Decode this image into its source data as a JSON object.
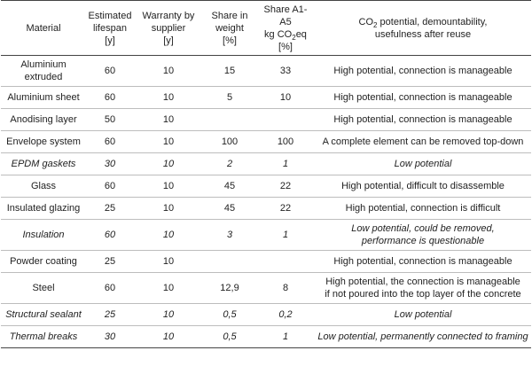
{
  "headers": {
    "material": "Material",
    "lifespan": [
      "Estimated",
      "lifespan",
      "[y]"
    ],
    "warranty": [
      "Warranty by",
      "supplier",
      "[y]"
    ],
    "weight": [
      "Share in",
      "weight",
      "[%]"
    ],
    "share": [
      "Share A1-A5",
      "kg CO",
      "2",
      "eq",
      "[%]"
    ],
    "potential": [
      "CO",
      "2",
      " potential, demountability,",
      "usefulness after reuse"
    ]
  },
  "rows": [
    {
      "material": [
        "Aluminium",
        "extruded"
      ],
      "lifespan": "60",
      "warranty": "10",
      "weight": "15",
      "share": "33",
      "potential": [
        "High potential, connection is manageable"
      ]
    },
    {
      "material": [
        "Aluminium sheet"
      ],
      "lifespan": "60",
      "warranty": "10",
      "weight": "5",
      "share": "10",
      "potential": [
        "High potential, connection is manageable"
      ]
    },
    {
      "material": [
        "Anodising layer"
      ],
      "lifespan": "50",
      "warranty": "10",
      "weight": "",
      "share": "",
      "potential": [
        "High potential, connection is manageable"
      ]
    },
    {
      "material": [
        "Envelope system"
      ],
      "lifespan": "60",
      "warranty": "10",
      "weight": "100",
      "share": "100",
      "potential": [
        "A complete element can be removed top-down"
      ]
    },
    {
      "material": [
        "EPDM gaskets"
      ],
      "lifespan": "30",
      "warranty": "10",
      "weight": "2",
      "share": "1",
      "potential": [
        "Low potential"
      ]
    },
    {
      "material": [
        "Glass"
      ],
      "lifespan": "60",
      "warranty": "10",
      "weight": "45",
      "share": "22",
      "potential": [
        "High potential, difficult to disassemble"
      ]
    },
    {
      "material": [
        "Insulated glazing"
      ],
      "lifespan": "25",
      "warranty": "10",
      "weight": "45",
      "share": "22",
      "potential": [
        "High potential, connection is difficult"
      ]
    },
    {
      "material": [
        "Insulation"
      ],
      "lifespan": "60",
      "warranty": "10",
      "weight": "3",
      "share": "1",
      "potential": [
        "Low potential, could be removed,",
        "performance is questionable"
      ]
    },
    {
      "material": [
        "Powder coating"
      ],
      "lifespan": "25",
      "warranty": "10",
      "weight": "",
      "share": "",
      "potential": [
        "High potential, connection is manageable"
      ]
    },
    {
      "material": [
        "Steel"
      ],
      "lifespan": "60",
      "warranty": "10",
      "weight": "12,9",
      "share": "8",
      "potential": [
        "High potential, the connection is manageable",
        "if not poured into the top layer of the concrete"
      ]
    },
    {
      "material": [
        "Structural sealant"
      ],
      "lifespan": "25",
      "warranty": "10",
      "weight": "0,5",
      "share": "0,2",
      "potential": [
        "Low potential"
      ]
    },
    {
      "material": [
        "Thermal breaks"
      ],
      "lifespan": "30",
      "warranty": "10",
      "weight": "0,5",
      "share": "1",
      "potential": [
        "Low potential, permanently connected to framing"
      ]
    }
  ]
}
